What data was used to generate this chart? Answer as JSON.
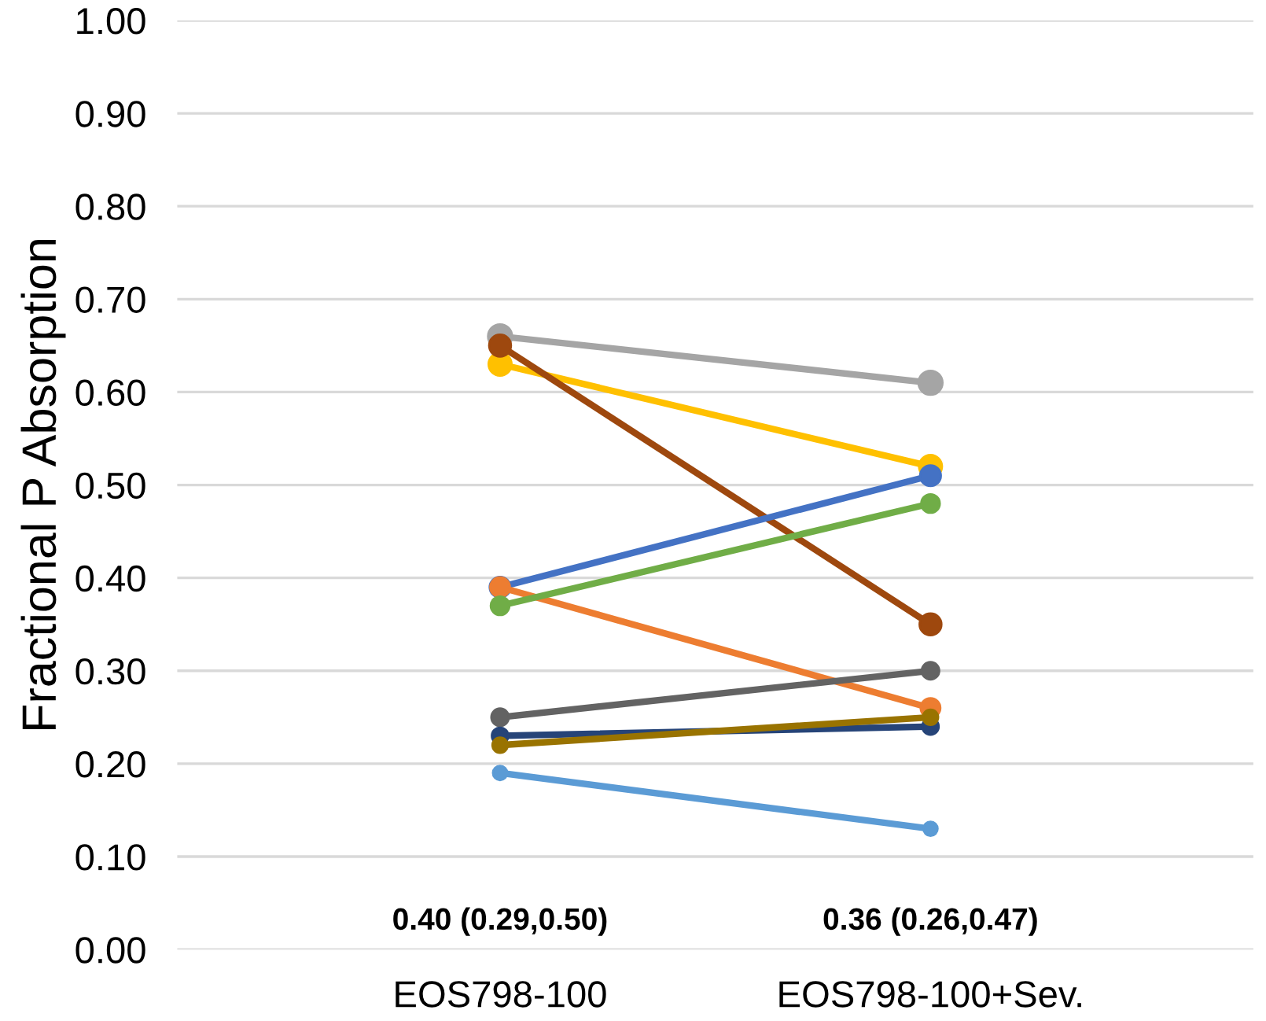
{
  "chart_data": {
    "type": "line",
    "ylabel": "Fractional P Absorption",
    "categories": [
      "EOS798-100",
      "EOS798-100+Sev."
    ],
    "series": [
      {
        "color": "#a5a5a5",
        "values": [
          0.66,
          0.61
        ]
      },
      {
        "color": "#ffc000",
        "values": [
          0.63,
          0.52
        ]
      },
      {
        "color": "#9e480e",
        "values": [
          0.65,
          0.35
        ]
      },
      {
        "color": "#4472c4",
        "values": [
          0.39,
          0.51
        ]
      },
      {
        "color": "#ed7d31",
        "values": [
          0.39,
          0.26
        ]
      },
      {
        "color": "#70ad47",
        "values": [
          0.37,
          0.48
        ]
      },
      {
        "color": "#636363",
        "values": [
          0.25,
          0.3
        ]
      },
      {
        "color": "#264478",
        "values": [
          0.23,
          0.24
        ]
      },
      {
        "color": "#997300",
        "values": [
          0.22,
          0.25
        ]
      },
      {
        "color": "#5b9bd5",
        "values": [
          0.19,
          0.13
        ]
      }
    ],
    "ylim": [
      0,
      1
    ],
    "yticks": [
      {
        "value": 0,
        "label": "0.00"
      },
      {
        "value": 0.1,
        "label": "0.10"
      },
      {
        "value": 0.2,
        "label": "0.20"
      },
      {
        "value": 0.3,
        "label": "0.30"
      },
      {
        "value": 0.4,
        "label": "0.40"
      },
      {
        "value": 0.5,
        "label": "0.50"
      },
      {
        "value": 0.6,
        "label": "0.60"
      },
      {
        "value": 0.7,
        "label": "0.70"
      },
      {
        "value": 0.8,
        "label": "0.80"
      },
      {
        "value": 0.9,
        "label": "0.90"
      },
      {
        "value": 1,
        "label": "1.00"
      }
    ],
    "grid": "y",
    "marker": "circle",
    "line_style": "solid",
    "annotations": [
      "0.40 (0.29,0.50)",
      "0.36 (0.26,0.47)"
    ]
  }
}
